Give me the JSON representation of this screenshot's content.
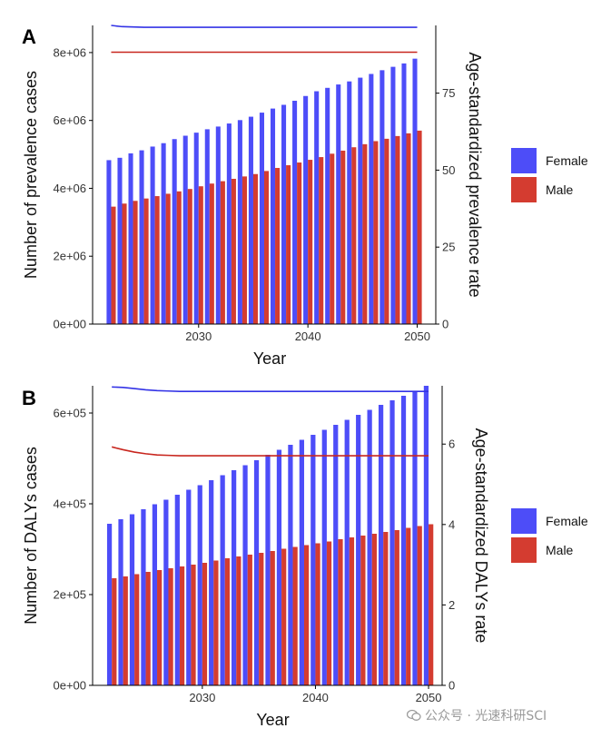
{
  "colors": {
    "female": "#4D4DF8",
    "female_line": "#3333E6",
    "male": "#D43C30",
    "male_line": "#C8261E",
    "axis": "#000000"
  },
  "watermark": {
    "text": "公众号 · 光速科研SCI",
    "icon": "wechat-icon"
  },
  "chart_data": [
    {
      "panel": "A",
      "type": "bar",
      "xlabel": "Year",
      "ylabel": "Number of prevalence cases",
      "ylabel_right": "Age-standardized prevalence rate",
      "x_ticks": [
        2030,
        2040,
        2050
      ],
      "xlim": [
        2020.3,
        2051.7
      ],
      "left_ticks": [
        {
          "value": 0,
          "label": "0e+00"
        },
        {
          "value": 2000000,
          "label": "2e+06"
        },
        {
          "value": 4000000,
          "label": "4e+06"
        },
        {
          "value": 6000000,
          "label": "6e+06"
        },
        {
          "value": 8000000,
          "label": "8e+06"
        }
      ],
      "left_lim": [
        0,
        8800000
      ],
      "right_ticks": [
        {
          "value": 0,
          "label": "0"
        },
        {
          "value": 25,
          "label": "25"
        },
        {
          "value": 50,
          "label": "50"
        },
        {
          "value": 75,
          "label": "75"
        }
      ],
      "right_lim": [
        0,
        97
      ],
      "x": [
        2022,
        2023,
        2024,
        2025,
        2026,
        2027,
        2028,
        2029,
        2030,
        2031,
        2032,
        2033,
        2034,
        2035,
        2036,
        2037,
        2038,
        2039,
        2040,
        2041,
        2042,
        2043,
        2044,
        2045,
        2046,
        2047,
        2048,
        2049,
        2050
      ],
      "bars": [
        {
          "name": "Female",
          "values": [
            4830000,
            4900000,
            5030000,
            5120000,
            5230000,
            5330000,
            5450000,
            5550000,
            5640000,
            5740000,
            5820000,
            5910000,
            6010000,
            6110000,
            6230000,
            6350000,
            6460000,
            6580000,
            6720000,
            6860000,
            6960000,
            7060000,
            7150000,
            7260000,
            7370000,
            7480000,
            7580000,
            7680000,
            7820000
          ]
        },
        {
          "name": "Male",
          "values": [
            3460000,
            3550000,
            3630000,
            3700000,
            3770000,
            3840000,
            3910000,
            3980000,
            4060000,
            4140000,
            4210000,
            4280000,
            4350000,
            4420000,
            4510000,
            4600000,
            4680000,
            4760000,
            4840000,
            4920000,
            5020000,
            5110000,
            5210000,
            5300000,
            5390000,
            5460000,
            5540000,
            5620000,
            5700000
          ]
        }
      ],
      "lines": [
        {
          "name": "Female",
          "values": [
            97.0,
            96.6,
            96.5,
            96.4,
            96.4,
            96.4,
            96.4,
            96.4,
            96.4,
            96.4,
            96.4,
            96.4,
            96.4,
            96.4,
            96.4,
            96.4,
            96.4,
            96.4,
            96.4,
            96.4,
            96.4,
            96.4,
            96.4,
            96.4,
            96.4,
            96.4,
            96.4,
            96.4,
            96.4
          ]
        },
        {
          "name": "Male",
          "values": [
            88.3,
            88.3,
            88.3,
            88.3,
            88.3,
            88.3,
            88.3,
            88.3,
            88.3,
            88.3,
            88.3,
            88.3,
            88.3,
            88.3,
            88.3,
            88.3,
            88.3,
            88.3,
            88.3,
            88.3,
            88.3,
            88.3,
            88.3,
            88.3,
            88.3,
            88.3,
            88.3,
            88.3,
            88.3
          ]
        }
      ],
      "legend": [
        {
          "name": "Female",
          "color": "#4D4DF8"
        },
        {
          "name": "Male",
          "color": "#D43C30"
        }
      ],
      "legend_position": "right",
      "grid": false
    },
    {
      "panel": "B",
      "type": "bar",
      "xlabel": "Year",
      "ylabel": "Number of DALYs cases",
      "ylabel_right": "Age-standardized DALYs rate",
      "x_ticks": [
        2030,
        2040,
        2050
      ],
      "xlim": [
        2020.3,
        2051.2
      ],
      "left_ticks": [
        {
          "value": 0,
          "label": "0e+00"
        },
        {
          "value": 200000,
          "label": "2e+05"
        },
        {
          "value": 400000,
          "label": "4e+05"
        },
        {
          "value": 600000,
          "label": "6e+05"
        }
      ],
      "left_lim": [
        0,
        660000
      ],
      "right_ticks": [
        {
          "value": 0,
          "label": "0"
        },
        {
          "value": 2,
          "label": "2"
        },
        {
          "value": 4,
          "label": "4"
        },
        {
          "value": 6,
          "label": "6"
        }
      ],
      "right_lim": [
        0,
        7.45
      ],
      "x": [
        2022,
        2023,
        2024,
        2025,
        2026,
        2027,
        2028,
        2029,
        2030,
        2031,
        2032,
        2033,
        2034,
        2035,
        2036,
        2037,
        2038,
        2039,
        2040,
        2041,
        2042,
        2043,
        2044,
        2045,
        2046,
        2047,
        2048,
        2049,
        2050
      ],
      "bars": [
        {
          "name": "Female",
          "values": [
            356000,
            366000,
            377000,
            388000,
            399000,
            409000,
            420000,
            431000,
            441000,
            452000,
            463000,
            474000,
            485000,
            496000,
            508000,
            519000,
            530000,
            541000,
            552000,
            563000,
            574000,
            585000,
            596000,
            607000,
            618000,
            628000,
            638000,
            648000,
            660000
          ]
        },
        {
          "name": "Male",
          "values": [
            236000,
            240000,
            245000,
            250000,
            254000,
            258000,
            262000,
            266000,
            270000,
            275000,
            280000,
            284000,
            288000,
            292000,
            296000,
            301000,
            305000,
            309000,
            313000,
            317000,
            322000,
            326000,
            330000,
            334000,
            338000,
            342000,
            347000,
            351000,
            355000
          ]
        }
      ],
      "lines": [
        {
          "name": "Female",
          "values": [
            7.42,
            7.41,
            7.38,
            7.35,
            7.33,
            7.32,
            7.31,
            7.31,
            7.31,
            7.31,
            7.31,
            7.31,
            7.31,
            7.31,
            7.31,
            7.31,
            7.31,
            7.31,
            7.31,
            7.31,
            7.31,
            7.31,
            7.31,
            7.31,
            7.31,
            7.31,
            7.31,
            7.31,
            7.31
          ]
        },
        {
          "name": "Male",
          "values": [
            5.93,
            5.86,
            5.8,
            5.76,
            5.73,
            5.72,
            5.71,
            5.71,
            5.71,
            5.71,
            5.71,
            5.71,
            5.71,
            5.71,
            5.71,
            5.71,
            5.71,
            5.71,
            5.71,
            5.71,
            5.71,
            5.71,
            5.71,
            5.71,
            5.71,
            5.71,
            5.71,
            5.71,
            5.71
          ]
        }
      ],
      "legend": [
        {
          "name": "Female",
          "color": "#4D4DF8"
        },
        {
          "name": "Male",
          "color": "#D43C30"
        }
      ],
      "legend_position": "right",
      "grid": false
    }
  ]
}
